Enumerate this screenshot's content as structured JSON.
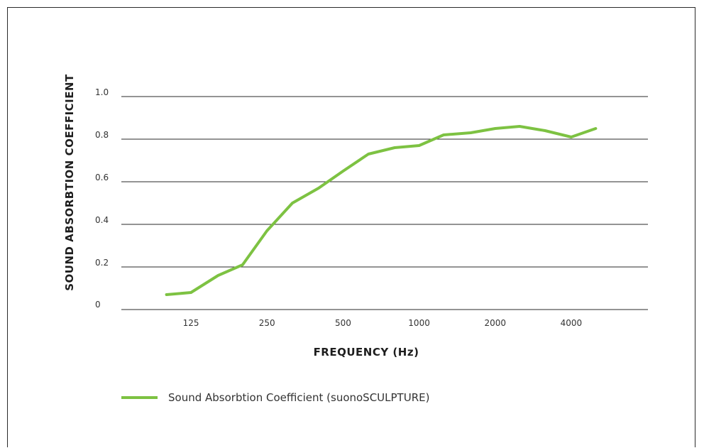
{
  "chart_data": {
    "type": "line",
    "xlabel": "FREQUENCY (Hz)",
    "ylabel": "SOUND ABSORBTION COEFFICIENT",
    "ylim": [
      0,
      1.0
    ],
    "y_ticks": [
      "0",
      "0.2",
      "0.4",
      "0.6",
      "0.8",
      "1.0"
    ],
    "y_tick_values": [
      0,
      0.2,
      0.4,
      0.6,
      0.8,
      1.0
    ],
    "x_tick_labels": [
      "125",
      "250",
      "500",
      "1000",
      "2000",
      "4000"
    ],
    "x_tick_values_hz": [
      125,
      250,
      500,
      1000,
      2000,
      4000
    ],
    "x_scale": "log",
    "grid": "horizontal",
    "legend_position": "bottom-left",
    "series": [
      {
        "name": "Sound Absorbtion Coefficient (suonoSCULPTURE)",
        "color": "#7dc242",
        "x": [
          100,
          125,
          160,
          200,
          250,
          315,
          400,
          500,
          630,
          800,
          1000,
          1250,
          1600,
          2000,
          2500,
          3150,
          4000,
          5000
        ],
        "y": [
          0.07,
          0.08,
          0.16,
          0.21,
          0.37,
          0.5,
          0.57,
          0.65,
          0.73,
          0.76,
          0.77,
          0.82,
          0.83,
          0.85,
          0.86,
          0.84,
          0.81,
          0.85
        ]
      }
    ]
  }
}
